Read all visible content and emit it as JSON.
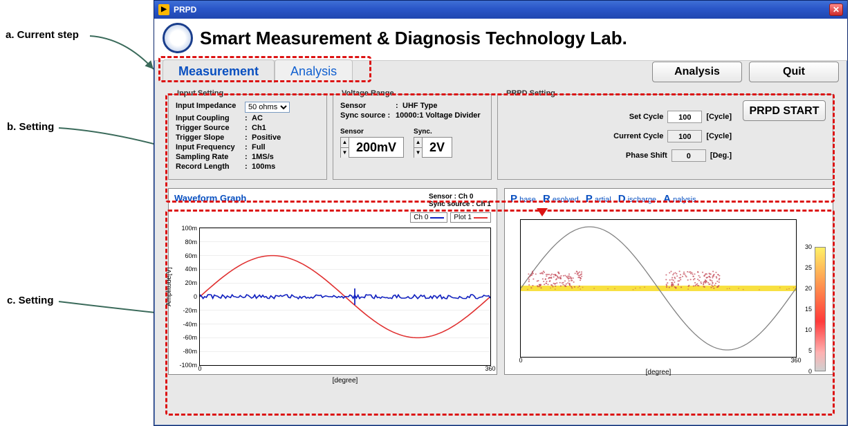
{
  "annotations": {
    "a": "a. Current step",
    "b": "b. Setting",
    "c": "c. Setting"
  },
  "window": {
    "title": "PRPD",
    "close_glyph": "✕"
  },
  "header": {
    "title": "Smart Measurement & Diagnosis Technology Lab.",
    "logo_text": ""
  },
  "toolbar": {
    "tab_measurement": "Measurement",
    "tab_analysis": "Analysis",
    "btn_analysis": "Analysis",
    "btn_quit": "Quit"
  },
  "input_setting": {
    "legend": "Input Setting",
    "impedance_label": "Input Impedance",
    "impedance_value": "50 ohms",
    "coupling_k": "Input Coupling",
    "coupling_v": "AC",
    "trigsrc_k": "Trigger Source",
    "trigsrc_v": "Ch1",
    "trigslope_k": "Trigger Slope",
    "trigslope_v": "Positive",
    "infreq_k": "Input Frequency",
    "infreq_v": "Full",
    "srate_k": "Sampling Rate",
    "srate_v": "1MS/s",
    "reclen_k": "Record Length",
    "reclen_v": "100ms"
  },
  "voltage_range": {
    "legend": "Voltage Range",
    "sensor_k": "Sensor",
    "sensor_v": "UHF Type",
    "sync_k": "Sync source :",
    "sync_v": "10000:1 Voltage Divider",
    "sensor_label": "Sensor",
    "sensor_val": "200mV",
    "sync_label": "Sync.",
    "sync_val": "2V"
  },
  "prpd_setting": {
    "legend": "PRPD Setting",
    "set_cycle_k": "Set Cycle",
    "set_cycle_v": "100",
    "set_cycle_u": "[Cycle]",
    "cur_cycle_k": "Current Cycle",
    "cur_cycle_v": "100",
    "cur_cycle_u": "[Cycle]",
    "phase_k": "Phase Shift",
    "phase_v": "0",
    "phase_u": "[Deg.]",
    "start_btn": "PRPD START"
  },
  "waveform": {
    "title": "Waveform Graph",
    "info1_k": "Sensor",
    "info1_v": ": Ch 0",
    "info2_k": "Sync source",
    "info2_v": ": Ch 1",
    "legend_ch0": "Ch 0",
    "legend_plot1": "Plot 1",
    "ylabel": "Amplitude[V]",
    "xlabel": "[degree]",
    "y_ticks": [
      "100m",
      "80m",
      "60m",
      "40m",
      "20m",
      "0",
      "-20m",
      "-40m",
      "-60m",
      "-80m",
      "-100m"
    ],
    "y_ticks_pos": [
      0,
      10,
      20,
      30,
      40,
      50,
      60,
      70,
      80,
      90,
      100
    ],
    "x_ticks": [
      "0",
      "360"
    ],
    "x_ticks_pos": [
      0,
      100
    ],
    "series": {
      "sine_color": "#e03030",
      "noise_color": "#1020c0",
      "sine_amplitude_pct": 60,
      "grid_color": "#dddddd"
    }
  },
  "prpd_graph": {
    "letters": [
      {
        "big": "P",
        "small": "hase"
      },
      {
        "big": "R",
        "small": "esolved"
      },
      {
        "big": "P",
        "small": "artial"
      },
      {
        "big": "D",
        "small": "ischarge"
      },
      {
        "big": "A",
        "small": "nalysis"
      }
    ],
    "xlabel": "[degree]",
    "x_ticks": [
      "0",
      "360"
    ],
    "x_ticks_pos": [
      0,
      100
    ],
    "colorbar_ticks": [
      "30",
      "25",
      "20",
      "15",
      "10",
      "5",
      "0"
    ],
    "colorbar_pos": [
      0,
      16.6,
      33.3,
      50,
      66.6,
      83.3,
      100
    ],
    "sine_color": "#808080",
    "point_color": "#c04050",
    "band_color": "#f8e040"
  },
  "colors": {
    "dashed_red": "#dc1414",
    "tab_blue": "#0a50c0",
    "window_border": "#0a246a"
  }
}
